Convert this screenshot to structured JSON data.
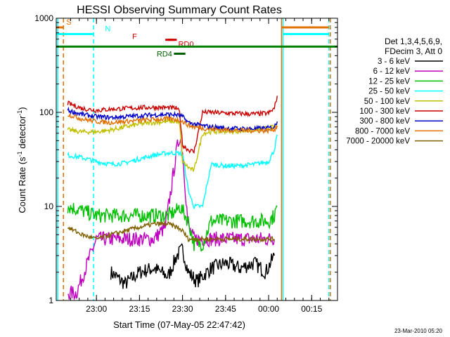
{
  "chart_data": {
    "type": "line",
    "title": "HESSI Observing Summary Count Rates",
    "xlabel": "Start Time (07-May-05 22:47:42)",
    "ylabel": "Count Rate (s^-1 detector^-1)",
    "y_scale": "log",
    "ylim": [
      1,
      1000
    ],
    "xlim_minutes": [
      -2,
      96
    ],
    "x_tick_labels": [
      {
        "label": "23:00",
        "t": 12
      },
      {
        "label": "23:15",
        "t": 27
      },
      {
        "label": "23:30",
        "t": 42
      },
      {
        "label": "23:45",
        "t": 57
      },
      {
        "label": "00:00",
        "t": 72
      },
      {
        "label": "00:15",
        "t": 87
      }
    ],
    "y_tick_labels": [
      {
        "label": "1",
        "v": 1
      },
      {
        "label": "10",
        "v": 10
      },
      {
        "label": "100",
        "v": 100
      },
      {
        "label": "1000",
        "v": 1000
      }
    ],
    "legend_header": [
      "Det 1,3,4,5,6,9,",
      "FDecim 3, Att 0"
    ],
    "series": [
      {
        "name": "3 - 6 keV",
        "color": "#000000",
        "x": [
          17,
          22,
          27,
          32,
          37,
          40,
          42,
          44,
          47,
          52,
          57,
          62,
          67,
          71,
          74
        ],
        "y": [
          2,
          1.5,
          2,
          2.2,
          1.8,
          3,
          3.5,
          2,
          1.6,
          2.2,
          2.5,
          2.2,
          2.5,
          2,
          3
        ]
      },
      {
        "name": "6 - 12 keV",
        "color": "#c000c0",
        "x": [
          2,
          5,
          12,
          17,
          22,
          27,
          32,
          36,
          38,
          40,
          41,
          42,
          43,
          44,
          46,
          49,
          52,
          57,
          62,
          67,
          72,
          74
        ],
        "y": [
          1.2,
          1.2,
          4.5,
          4.5,
          4.5,
          4.5,
          4.5,
          6,
          15,
          40,
          55,
          40,
          15,
          6,
          4.5,
          4.5,
          4.5,
          4.5,
          4.5,
          4.5,
          4.5,
          4.5
        ]
      },
      {
        "name": "12 - 25 keV",
        "color": "#00c000",
        "x": [
          2,
          7,
          12,
          17,
          22,
          27,
          32,
          37,
          40,
          41,
          42,
          44,
          46,
          49,
          52,
          57,
          62,
          67,
          72,
          74,
          75
        ],
        "y": [
          10,
          9,
          8,
          8,
          8,
          8,
          8,
          8,
          9,
          10,
          9,
          7,
          4,
          4,
          7,
          7,
          7,
          7,
          7,
          8,
          10
        ]
      },
      {
        "name": "25 - 50 keV",
        "color": "#00ffff",
        "x": [
          2,
          7,
          12,
          17,
          22,
          27,
          32,
          37,
          40,
          42,
          44,
          45,
          46,
          49,
          52,
          57,
          62,
          67,
          72,
          74,
          75
        ],
        "y": [
          35,
          33,
          30,
          28,
          29,
          32,
          35,
          37,
          37,
          36,
          15,
          12,
          10,
          10,
          28,
          27,
          27,
          28,
          30,
          40,
          58
        ]
      },
      {
        "name": "50 - 100 keV",
        "color": "#c0c000",
        "x": [
          2,
          7,
          12,
          17,
          22,
          27,
          32,
          37,
          40,
          41,
          42,
          44,
          46,
          49,
          52,
          57,
          62,
          67,
          72,
          74,
          75
        ],
        "y": [
          65,
          62,
          62,
          65,
          70,
          75,
          78,
          80,
          80,
          75,
          30,
          26,
          24,
          60,
          62,
          63,
          63,
          65,
          68,
          70,
          72
        ]
      },
      {
        "name": "100 - 300 keV",
        "color": "#cc0000",
        "x": [
          2,
          7,
          12,
          17,
          22,
          27,
          32,
          37,
          40,
          41,
          42,
          44,
          46,
          49,
          52,
          57,
          62,
          67,
          72,
          74,
          75
        ],
        "y": [
          125,
          110,
          105,
          108,
          110,
          112,
          113,
          112,
          110,
          100,
          45,
          40,
          38,
          100,
          100,
          98,
          97,
          96,
          98,
          110,
          150
        ]
      },
      {
        "name": "300 - 800 keV",
        "color": "#0000cc",
        "x": [
          2,
          7,
          12,
          17,
          22,
          27,
          32,
          37,
          40,
          42,
          44,
          46,
          49,
          52,
          57,
          62,
          67,
          72,
          74,
          75
        ],
        "y": [
          105,
          95,
          90,
          88,
          90,
          92,
          94,
          95,
          94,
          90,
          78,
          75,
          72,
          70,
          68,
          67,
          67,
          68,
          70,
          80
        ]
      },
      {
        "name": "800 - 7000 keV",
        "color": "#e07000",
        "x": [
          2,
          7,
          12,
          17,
          22,
          27,
          32,
          37,
          40,
          42,
          44,
          46,
          49,
          52,
          57,
          62,
          67,
          72,
          74,
          75
        ],
        "y": [
          95,
          85,
          80,
          78,
          80,
          82,
          84,
          85,
          84,
          80,
          73,
          70,
          68,
          66,
          65,
          64,
          64,
          64,
          66,
          72
        ]
      },
      {
        "name": "7000 - 20000 keV",
        "color": "#806000",
        "x": [
          2,
          7,
          12,
          17,
          22,
          27,
          32,
          37,
          40,
          42,
          44,
          46,
          49,
          52,
          57,
          62,
          67,
          72,
          74
        ],
        "y": [
          6,
          5,
          4.5,
          5,
          5.5,
          6,
          6.5,
          6.5,
          6,
          5.5,
          4.5,
          4.5,
          4.5,
          4.5,
          4.5,
          4.5,
          4.5,
          4.5,
          4.5
        ]
      }
    ],
    "flags": [
      {
        "label": "S",
        "color": "#e07000",
        "segments": [
          [
            -2,
            0.5
          ]
        ],
        "v": 800
      },
      {
        "label": "N",
        "color": "#00ffff",
        "segments": [
          [
            -2,
            11
          ]
        ],
        "v": 680
      },
      {
        "label": "F",
        "color": "#cc0000",
        "segments": [
          [
            37,
            40
          ]
        ],
        "v": 590
      },
      {
        "label": "RD0",
        "color": "#cc0000",
        "segments": [
          [
            36,
            39
          ]
        ],
        "v": 590
      },
      {
        "label": "RD4",
        "color": "#006000",
        "segments": [
          [
            39,
            43
          ]
        ],
        "v": 420
      },
      {
        "label": "",
        "color": "#008000",
        "segments": [
          [
            -2,
            96
          ]
        ],
        "v": 500
      },
      {
        "label": "",
        "color": "#e07000",
        "segments": [
          [
            76.5,
            93
          ]
        ],
        "v": 800
      },
      {
        "label": "",
        "color": "#00ffff",
        "segments": [
          [
            77,
            93
          ]
        ],
        "v": 680
      }
    ],
    "vertical_lines": [
      {
        "t": 0.5,
        "color": "#e07000",
        "style": "dashed"
      },
      {
        "t": 11,
        "color": "#00ffff",
        "style": "dashed"
      },
      {
        "t": 76.5,
        "color": "#e07000",
        "style": "solid"
      },
      {
        "t": 77,
        "color": "#00ffff",
        "style": "solid"
      },
      {
        "t": 93,
        "color": "#00ffff",
        "style": "dashed"
      },
      {
        "t": 93.5,
        "color": "#e07000",
        "style": "dashed"
      },
      {
        "t": -1.5,
        "color": "#00ffff",
        "style": "solid"
      }
    ],
    "grid": false,
    "legend_position": "right"
  },
  "footer_timestamp": "23-Mar-2010 05:20"
}
